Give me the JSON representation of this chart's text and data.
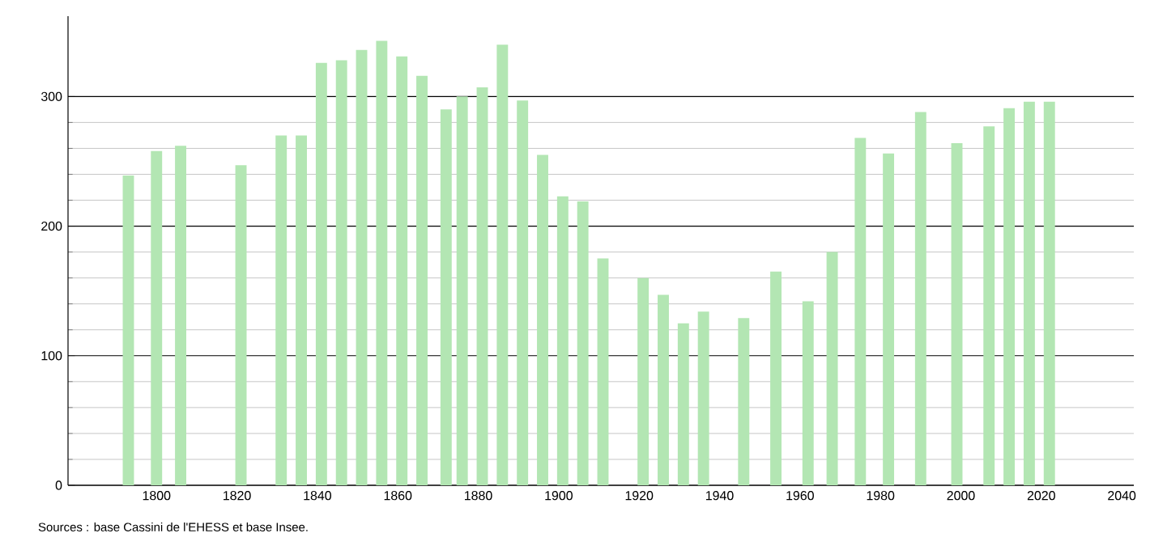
{
  "chart_data": {
    "type": "bar",
    "color": "#b3e6b3",
    "x": [
      1793,
      1800,
      1806,
      1821,
      1831,
      1836,
      1841,
      1846,
      1851,
      1856,
      1861,
      1866,
      1872,
      1876,
      1881,
      1886,
      1891,
      1896,
      1901,
      1906,
      1911,
      1921,
      1926,
      1931,
      1936,
      1946,
      1954,
      1962,
      1968,
      1975,
      1982,
      1990,
      1999,
      2007,
      2012,
      2017,
      2022
    ],
    "values": [
      239,
      258,
      262,
      247,
      270,
      270,
      326,
      328,
      336,
      343,
      331,
      316,
      290,
      300,
      307,
      340,
      297,
      255,
      223,
      219,
      175,
      160,
      147,
      125,
      134,
      129,
      165,
      142,
      180,
      268,
      256,
      288,
      264,
      277,
      291,
      296,
      296
    ],
    "xlim": [
      1778,
      2043
    ],
    "ylim": [
      0,
      362
    ],
    "xticks": [
      1800,
      1820,
      1840,
      1860,
      1880,
      1900,
      1920,
      1940,
      1960,
      1980,
      2000,
      2020,
      2040
    ],
    "yticks": [
      0,
      100,
      200,
      300
    ],
    "grid": "y",
    "annotations": [
      "Sources : base Cassini de l'EHESS et base Insee."
    ]
  }
}
